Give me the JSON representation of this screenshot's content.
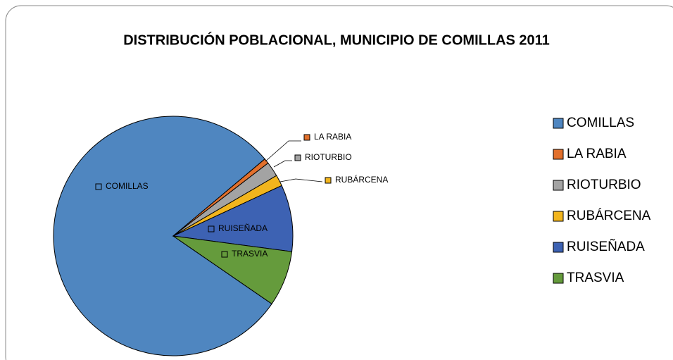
{
  "chart_data": {
    "type": "pie",
    "title": "DISTRIBUCIÓN POBLACIONAL, MUNICIPIO DE COMILLAS 2011",
    "categories": [
      "COMILLAS",
      "LA RABIA",
      "RIOTURBIO",
      "RUBÁRCENA",
      "RUISEÑADA",
      "TRASVIA"
    ],
    "values": [
      79.3,
      0.7,
      2,
      1.5,
      9,
      7.5
    ],
    "colors": [
      "#4f86c0",
      "#e2702c",
      "#a3a3a3",
      "#f2b51d",
      "#3d62b3",
      "#659b3c"
    ],
    "legend": "right"
  }
}
